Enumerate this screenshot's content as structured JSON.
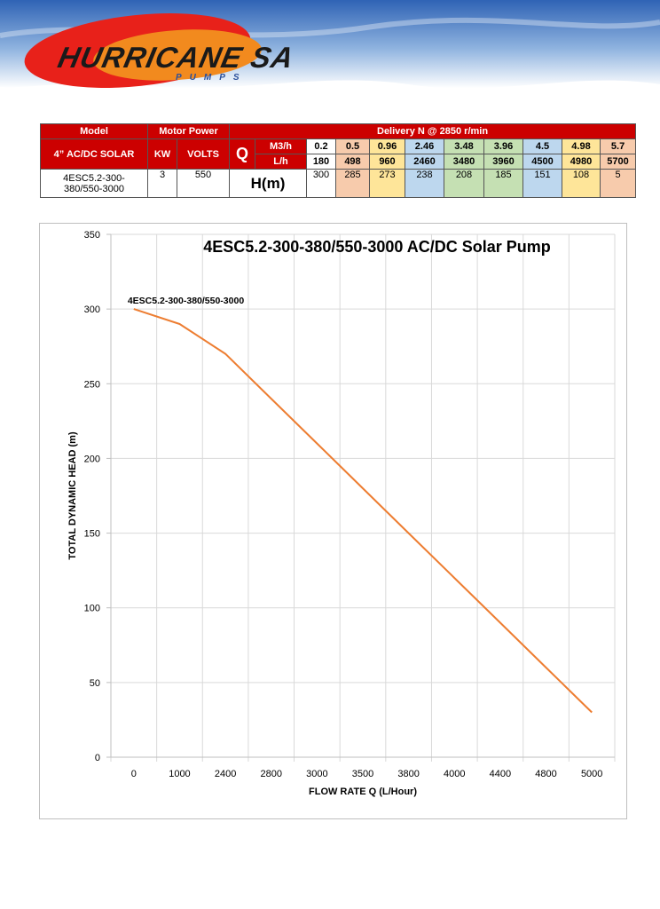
{
  "brand": {
    "name": "HURRICANE SA",
    "tagline": "PUMPS"
  },
  "table": {
    "header_model": "Model",
    "header_motor": "Motor Power",
    "header_delivery": "Delivery N @ 2850 r/min",
    "model_type": "4” AC/DC SOLAR",
    "kw_label": "KW",
    "volts_label": "VOLTS",
    "q_label": "Q",
    "m3h_label": "M3/h",
    "lh_label": "L/h",
    "model_name_line1": "4ESC5.2-300-",
    "model_name_line2": "380/550-3000",
    "kw": "3",
    "volts": "550",
    "hm_label": "H(m)",
    "m3h": [
      "0.2",
      "0.5",
      "0.96",
      "2.46",
      "3.48",
      "3.96",
      "4.5",
      "4.98",
      "5.7"
    ],
    "lh": [
      "180",
      "498",
      "960",
      "2460",
      "3480",
      "3960",
      "4500",
      "4980",
      "5700"
    ],
    "head": [
      "300",
      "285",
      "273",
      "238",
      "208",
      "185",
      "151",
      "108",
      "5"
    ],
    "col_colors": [
      "#ffffff",
      "#f7cbac",
      "#fee599",
      "#bdd7ee",
      "#c5e0b3",
      "#c5e0b3",
      "#bdd7ee",
      "#fee599",
      "#f7cbac"
    ]
  },
  "chart_data": {
    "type": "line",
    "title": "4ESC5.2-300-380/550-3000 AC/DC Solar Pump",
    "xlabel": "FLOW RATE Q (L/Hour)",
    "ylabel": "TOTAL DYNAMIC HEAD (m)",
    "categories": [
      "0",
      "1000",
      "2400",
      "2800",
      "3000",
      "3500",
      "3800",
      "4000",
      "4400",
      "4800",
      "5000"
    ],
    "series": [
      {
        "name": "4ESC5.2-300-380/550-3000",
        "values": [
          300,
          290,
          270,
          240,
          210,
          180,
          150,
          120,
          90,
          60,
          30
        ],
        "color": "#ed7d31"
      }
    ],
    "ylim": [
      0,
      350
    ],
    "yticks": [
      0,
      50,
      100,
      150,
      200,
      250,
      300,
      350
    ],
    "grid": true,
    "legend": "none"
  }
}
